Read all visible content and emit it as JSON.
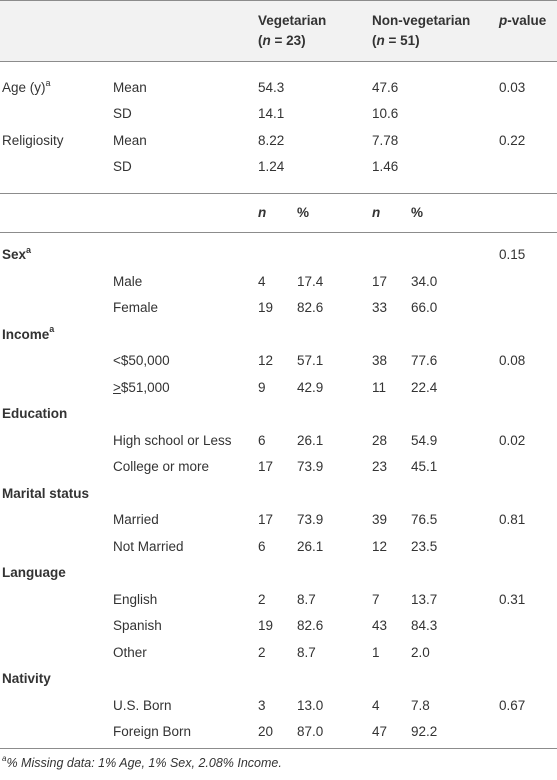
{
  "header": {
    "veg_label": "Vegetarian",
    "veg_n": "(n = 23)",
    "nonveg_label": "Non-vegetarian",
    "nonveg_n": "(n = 51)",
    "pvalue_p": "p",
    "pvalue_rest": "-value"
  },
  "continuous": [
    {
      "var": "Age (y)",
      "var_sup": "a",
      "stat": "Mean",
      "veg": "54.3",
      "nonveg": "47.6",
      "p": "0.03"
    },
    {
      "var": "",
      "var_sup": "",
      "stat": "SD",
      "veg": "14.1",
      "nonveg": "10.6",
      "p": ""
    },
    {
      "var": "Religiosity",
      "var_sup": "",
      "stat": "Mean",
      "veg": "8.22",
      "nonveg": "7.78",
      "p": "0.22"
    },
    {
      "var": "",
      "var_sup": "",
      "stat": "SD",
      "veg": "1.24",
      "nonveg": "1.46",
      "p": ""
    }
  ],
  "subheader": {
    "n": "n",
    "pct": "%"
  },
  "categorical": [
    {
      "name": "Sex",
      "sup": "a",
      "p": "0.15",
      "rows": [
        {
          "label": "Male",
          "veg_n": "4",
          "veg_pct": "17.4",
          "non_n": "17",
          "non_pct": "34.0",
          "p": ""
        },
        {
          "label": "Female",
          "veg_n": "19",
          "veg_pct": "82.6",
          "non_n": "33",
          "non_pct": "66.0",
          "p": ""
        }
      ]
    },
    {
      "name": "Income",
      "sup": "a",
      "p": "",
      "rows": [
        {
          "label": "<$50,000",
          "veg_n": "12",
          "veg_pct": "57.1",
          "non_n": "38",
          "non_pct": "77.6",
          "p": "0.08"
        },
        {
          "label_ul": ">",
          "label": "$51,000",
          "veg_n": "9",
          "veg_pct": "42.9",
          "non_n": "11",
          "non_pct": "22.4",
          "p": ""
        }
      ]
    },
    {
      "name": "Education",
      "sup": "",
      "p": "",
      "rows": [
        {
          "label": "High school or Less",
          "veg_n": "6",
          "veg_pct": "26.1",
          "non_n": "28",
          "non_pct": "54.9",
          "p": "0.02"
        },
        {
          "label": "College or more",
          "veg_n": "17",
          "veg_pct": "73.9",
          "non_n": "23",
          "non_pct": "45.1",
          "p": ""
        }
      ]
    },
    {
      "name": "Marital status",
      "sup": "",
      "p": "",
      "rows": [
        {
          "label": "Married",
          "veg_n": "17",
          "veg_pct": "73.9",
          "non_n": "39",
          "non_pct": "76.5",
          "p": "0.81"
        },
        {
          "label": "Not Married",
          "veg_n": "6",
          "veg_pct": "26.1",
          "non_n": "12",
          "non_pct": "23.5",
          "p": ""
        }
      ]
    },
    {
      "name": "Language",
      "sup": "",
      "p": "",
      "rows": [
        {
          "label": "English",
          "veg_n": "2",
          "veg_pct": "8.7",
          "non_n": "7",
          "non_pct": "13.7",
          "p": "0.31"
        },
        {
          "label": "Spanish",
          "veg_n": "19",
          "veg_pct": "82.6",
          "non_n": "43",
          "non_pct": "84.3",
          "p": ""
        },
        {
          "label": "Other",
          "veg_n": "2",
          "veg_pct": "8.7",
          "non_n": "1",
          "non_pct": "2.0",
          "p": ""
        }
      ]
    },
    {
      "name": "Nativity",
      "sup": "",
      "p": "",
      "rows": [
        {
          "label": "U.S. Born",
          "veg_n": "3",
          "veg_pct": "13.0",
          "non_n": "4",
          "non_pct": "7.8",
          "p": "0.67"
        },
        {
          "label": "Foreign Born",
          "veg_n": "20",
          "veg_pct": "87.0",
          "non_n": "47",
          "non_pct": "92.2",
          "p": ""
        }
      ]
    }
  ],
  "footnote": {
    "sup": "a",
    "text": "% Missing data: 1% Age, 1% Sex, 2.08% Income."
  }
}
